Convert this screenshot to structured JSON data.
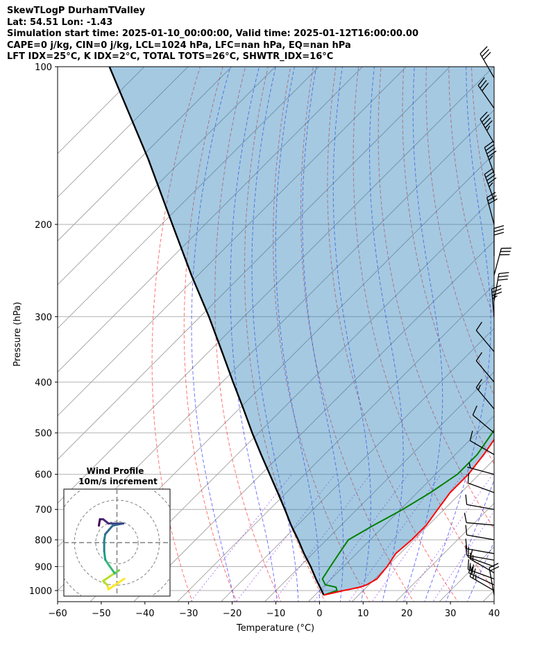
{
  "title_lines": [
    "SkewTLogP DurhamTValley",
    "Lat: 54.51   Lon: -1.43",
    "Simulation start time: 2025-01-10_00:00:00, Valid time: 2025-01-12T16:00:00.00",
    "CAPE=0 j/kg, CIN=0 j/kg, LCL=1024 hPa, LFC=nan hPa, EQ=nan hPa",
    "LFT IDX=25°C, K IDX=2°C, TOTAL TOTS=26°C, SHWTR_IDX=16°C"
  ],
  "chart_data": {
    "type": "skewt",
    "title": "SkewTLogP DurhamTValley",
    "xlabel": "Temperature (°C)",
    "ylabel": "Pressure (hPa)",
    "xlim": [
      -60,
      40
    ],
    "ylim": [
      1050,
      100
    ],
    "y_scale": "log",
    "grid": true,
    "x_ticks": [
      -60,
      -50,
      -40,
      -30,
      -20,
      -10,
      0,
      10,
      20,
      30,
      40
    ],
    "x_tick_labels": [
      "−60",
      "−50",
      "−40",
      "−30",
      "−20",
      "−10",
      "0",
      "10",
      "20",
      "30",
      "40"
    ],
    "y_ticks": [
      1000,
      900,
      800,
      700,
      600,
      500,
      400,
      300,
      200,
      100
    ],
    "y_tick_labels": [
      "1000",
      "900",
      "800",
      "700",
      "600",
      "500",
      "400",
      "300",
      "200",
      "100"
    ],
    "colors": {
      "temperature": "#ff0000",
      "dewpoint": "#008000",
      "parcel": "#000000",
      "cin_cape_fill": "#1f77b4",
      "dry_adiabat": "#ff0000",
      "moist_adiabat": "#0000ff",
      "mixing_ratio": "#8a2be2",
      "isotherm": "#808080",
      "barb": "#000000"
    },
    "series": [
      {
        "name": "",
        "kind": "temperature",
        "pressure": [
          1020,
          1000,
          985,
          975,
          950,
          900,
          850,
          800,
          750,
          700,
          650,
          600,
          550,
          500,
          450,
          400,
          350,
          320,
          300,
          280,
          250,
          220,
          200,
          185,
          175,
          165,
          155,
          145,
          130,
          120,
          110,
          100
        ],
        "temperature": [
          2.0,
          5.5,
          8.5,
          9.5,
          10.5,
          10.0,
          9.0,
          9.5,
          9.5,
          8.5,
          7.5,
          7.5,
          6.5,
          5.0,
          2.5,
          -0.5,
          -4.0,
          -5.5,
          -7.5,
          -10.0,
          -13.0,
          -16.5,
          -19.0,
          -21.5,
          -21.5,
          -18.5,
          -13.0,
          -10.0,
          -4.0,
          0.5,
          3.5,
          5.0
        ]
      },
      {
        "name": "",
        "kind": "dewpoint",
        "pressure": [
          1020,
          1000,
          985,
          975,
          950,
          900,
          850,
          800,
          750,
          700,
          650,
          600,
          550,
          500,
          450,
          400,
          350,
          320,
          300,
          280,
          265,
          250,
          220,
          200,
          185,
          175,
          165,
          155,
          145,
          130,
          120,
          110,
          100
        ],
        "dewpoint": [
          2.0,
          4.0,
          3.0,
          0.0,
          -2.0,
          -3.0,
          -4.0,
          -5.0,
          -2.5,
          0.5,
          3.0,
          5.0,
          5.0,
          3.5,
          1.5,
          -2.5,
          -6.0,
          -7.5,
          -10.0,
          -13.0,
          -14.5,
          -15.5,
          -19.0,
          -22.0,
          -24.0,
          -25.5,
          -23.5,
          -21.0,
          -20.0,
          -17.5,
          -15.5,
          -13.5,
          -13.0
        ]
      },
      {
        "name": "",
        "kind": "parcel",
        "pressure": [
          1020,
          1000,
          950,
          900,
          850,
          800,
          750,
          700,
          650,
          600,
          550,
          500,
          450,
          400,
          350,
          300,
          250,
          200,
          150,
          100
        ],
        "temperature": [
          2.0,
          0.5,
          -3.5,
          -7.5,
          -12.0,
          -16.5,
          -21.5,
          -26.5,
          -32.0,
          -38.0,
          -44.5,
          -51.5,
          -59.0,
          -67.5,
          -77.0,
          -88.0,
          -101.5,
          -117.5,
          -138.0,
          -168.0
        ]
      }
    ],
    "shading": {
      "name": "",
      "between": [
        "parcel",
        "temperature"
      ],
      "color": "#1f77b4",
      "alpha": 0.4
    },
    "wind_barbs": {
      "pressure": [
        1020,
        1000,
        975,
        950,
        925,
        900,
        875,
        850,
        800,
        750,
        700,
        650,
        600,
        550,
        500,
        450,
        400,
        350,
        300,
        280,
        250,
        230,
        200,
        180,
        160,
        140,
        120,
        105
      ],
      "speed_kt": [
        20,
        25,
        20,
        15,
        15,
        15,
        10,
        10,
        10,
        10,
        10,
        10,
        5,
        10,
        10,
        15,
        10,
        10,
        35,
        30,
        30,
        30,
        30,
        45,
        45,
        45,
        30,
        30
      ],
      "direction_deg": [
        350,
        300,
        295,
        290,
        300,
        290,
        280,
        280,
        280,
        275,
        280,
        290,
        285,
        300,
        310,
        320,
        320,
        320,
        355,
        10,
        15,
        0,
        345,
        340,
        340,
        330,
        325,
        330
      ]
    },
    "inset": {
      "type": "hodograph",
      "title_lines": [
        "Wind Profile",
        "10m/s increment"
      ],
      "ring_increment_ms": 10,
      "rings": [
        10,
        20,
        30
      ],
      "range": [
        -25,
        25
      ],
      "line_colormap": "viridis",
      "points": [
        [
          3.5,
          -17
        ],
        [
          -4,
          -22
        ],
        [
          -4.5,
          -20
        ],
        [
          -6.5,
          -18
        ],
        [
          1,
          -13
        ],
        [
          -1,
          -14.5
        ],
        [
          -3.5,
          -11
        ],
        [
          -5.5,
          -8
        ],
        [
          -6,
          -4
        ],
        [
          -6,
          1
        ],
        [
          -5.5,
          4
        ],
        [
          -2,
          8
        ],
        [
          3,
          9
        ],
        [
          -4,
          9
        ],
        [
          -6.5,
          11
        ],
        [
          -8,
          11
        ],
        [
          -8.5,
          8
        ]
      ]
    }
  }
}
